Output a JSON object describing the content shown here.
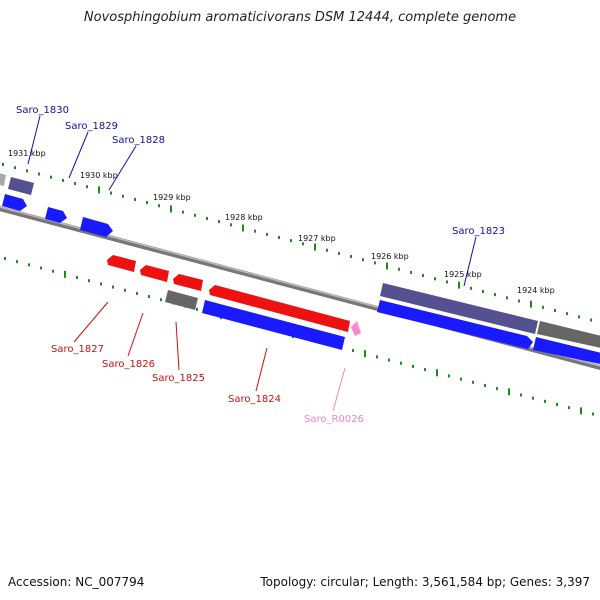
{
  "title": "Novosphingobium aromaticivorans DSM 12444, complete genome",
  "accession": "Accession: NC_007794",
  "stats": "Topology: circular; Length: 3,561,584 bp; Genes: 3,397",
  "colors": {
    "forward_gene": "#1a1aff",
    "reverse_gene": "#ee1111",
    "pseudo_gene": "#55508f",
    "other_gene": "#666666",
    "rna_gene": "#ff88cc",
    "tick": "#228822",
    "backbone": "#888888",
    "label_forward": "#1010aa",
    "label_reverse": "#cc1111",
    "label_rna": "#ee88bb"
  },
  "kbp_labels": [
    "1931 kbp",
    "1930 kbp",
    "1929 kbp",
    "1928 kbp",
    "1927 kbp",
    "1926 kbp",
    "1925 kbp",
    "1924 kbp"
  ],
  "gene_labels": {
    "top": [
      "Saro_1830",
      "Saro_1829",
      "Saro_1828",
      "Saro_1823"
    ],
    "bottom": [
      "Saro_1827",
      "Saro_1826",
      "Saro_1825",
      "Saro_1824",
      "Saro_R0026"
    ]
  }
}
